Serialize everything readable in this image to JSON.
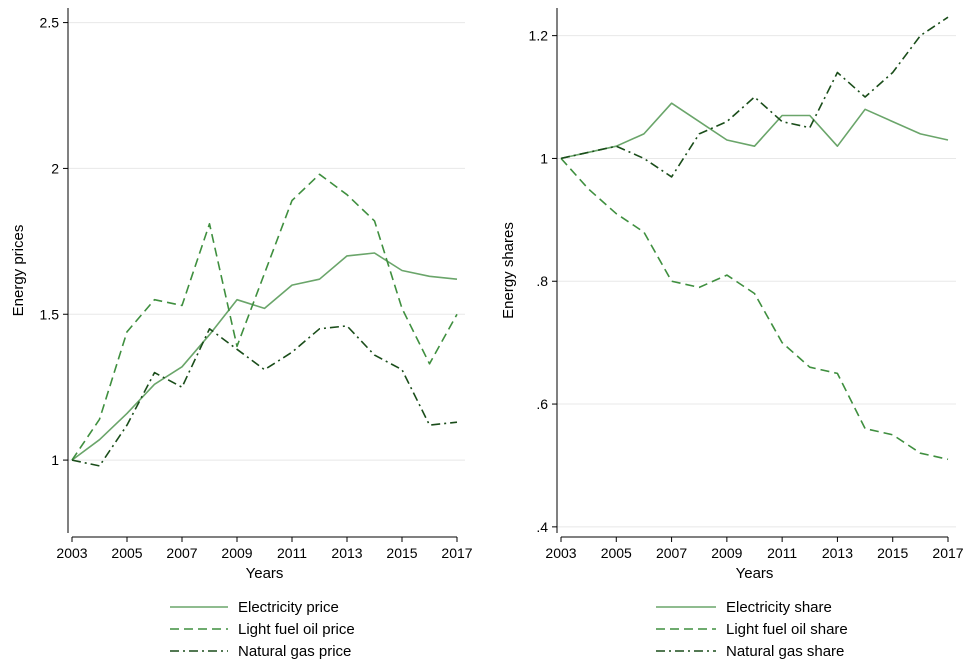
{
  "chart_data": [
    {
      "type": "line",
      "xlabel": "Years",
      "ylabel": "Energy prices",
      "xlim": [
        2003,
        2017
      ],
      "ylim": [
        0.75,
        2.55
      ],
      "xticks": [
        2003,
        2005,
        2007,
        2009,
        2011,
        2013,
        2015,
        2017
      ],
      "yticks": [
        1,
        1.5,
        2,
        2.5
      ],
      "ytick_labels": [
        "1",
        "1.5",
        "2",
        "2.5"
      ],
      "grid": true,
      "legend_position": "bottom",
      "x": [
        2003,
        2004,
        2005,
        2006,
        2007,
        2008,
        2009,
        2010,
        2011,
        2012,
        2013,
        2014,
        2015,
        2016,
        2017
      ],
      "series": [
        {
          "name": "Electricity price",
          "style": "solid",
          "color": "#6aa56a",
          "values": [
            1.0,
            1.07,
            1.16,
            1.26,
            1.32,
            1.43,
            1.55,
            1.52,
            1.6,
            1.62,
            1.7,
            1.71,
            1.65,
            1.63,
            1.62
          ]
        },
        {
          "name": "Light fuel oil price",
          "style": "dash",
          "color": "#3f8f3f",
          "values": [
            1.0,
            1.14,
            1.44,
            1.55,
            1.53,
            1.81,
            1.39,
            1.64,
            1.89,
            1.98,
            1.91,
            1.82,
            1.52,
            1.33,
            1.5
          ]
        },
        {
          "name": "Natural gas price",
          "style": "dashdot",
          "color": "#1a4d1a",
          "values": [
            1.0,
            0.98,
            1.12,
            1.3,
            1.25,
            1.45,
            1.38,
            1.31,
            1.37,
            1.45,
            1.46,
            1.36,
            1.31,
            1.12,
            1.13
          ]
        }
      ]
    },
    {
      "type": "line",
      "xlabel": "Years",
      "ylabel": "Energy shares",
      "xlim": [
        2003,
        2017
      ],
      "ylim": [
        0.39,
        1.245
      ],
      "xticks": [
        2003,
        2005,
        2007,
        2009,
        2011,
        2013,
        2015,
        2017
      ],
      "yticks": [
        0.4,
        0.6,
        0.8,
        1.0,
        1.2
      ],
      "ytick_labels": [
        ".4",
        ".6",
        ".8",
        "1",
        "1.2"
      ],
      "grid": true,
      "legend_position": "bottom",
      "x": [
        2003,
        2004,
        2005,
        2006,
        2007,
        2008,
        2009,
        2010,
        2011,
        2012,
        2013,
        2014,
        2015,
        2016,
        2017
      ],
      "series": [
        {
          "name": "Electricity share",
          "style": "solid",
          "color": "#6aa56a",
          "values": [
            1.0,
            1.01,
            1.02,
            1.04,
            1.09,
            1.06,
            1.03,
            1.02,
            1.07,
            1.07,
            1.02,
            1.08,
            1.06,
            1.04,
            1.03
          ]
        },
        {
          "name": "Light fuel oil share",
          "style": "dash",
          "color": "#3f8f3f",
          "values": [
            1.0,
            0.95,
            0.91,
            0.88,
            0.8,
            0.79,
            0.81,
            0.78,
            0.7,
            0.66,
            0.65,
            0.56,
            0.55,
            0.52,
            0.51
          ]
        },
        {
          "name": "Natural gas share",
          "style": "dashdot",
          "color": "#1a4d1a",
          "values": [
            1.0,
            1.01,
            1.02,
            1.0,
            0.97,
            1.04,
            1.06,
            1.1,
            1.06,
            1.05,
            1.14,
            1.1,
            1.14,
            1.2,
            1.23
          ]
        }
      ]
    }
  ]
}
